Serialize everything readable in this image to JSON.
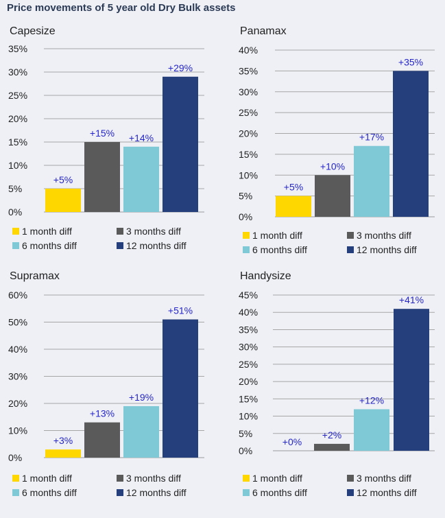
{
  "page_title": "Price movements of 5 year old Dry Bulk assets",
  "chart_data": [
    {
      "type": "bar",
      "title": "Capesize",
      "categories": [
        "1 month diff",
        "3 months diff",
        "6 months diff",
        "12 months diff"
      ],
      "values": [
        5,
        15,
        14,
        29
      ],
      "data_labels": [
        "+5%",
        "+15%",
        "+14%",
        "+29%"
      ],
      "y_ticks": [
        "0%",
        "5%",
        "10%",
        "15%",
        "20%",
        "25%",
        "30%",
        "35%"
      ],
      "ylim": [
        0,
        35
      ],
      "legend": [
        "1 month diff",
        "3 months diff",
        "6 months diff",
        "12 months diff"
      ],
      "legend_position": "bottom",
      "grid": true,
      "colors": [
        "#ffd700",
        "#5a5a5a",
        "#7fc8d6",
        "#253f7d"
      ]
    },
    {
      "type": "bar",
      "title": "Panamax",
      "categories": [
        "1 month diff",
        "3 months diff",
        "6 months diff",
        "12 months diff"
      ],
      "values": [
        5,
        10,
        17,
        35
      ],
      "data_labels": [
        "+5%",
        "+10%",
        "+17%",
        "+35%"
      ],
      "y_ticks": [
        "0%",
        "5%",
        "10%",
        "15%",
        "20%",
        "25%",
        "30%",
        "35%",
        "40%"
      ],
      "ylim": [
        0,
        40
      ],
      "legend": [
        "1 month diff",
        "3 months diff",
        "6 months diff",
        "12 months diff"
      ],
      "legend_position": "bottom",
      "grid": true,
      "colors": [
        "#ffd700",
        "#5a5a5a",
        "#7fc8d6",
        "#253f7d"
      ]
    },
    {
      "type": "bar",
      "title": "Supramax",
      "categories": [
        "1 month diff",
        "3 months diff",
        "6 months diff",
        "12 months diff"
      ],
      "values": [
        3,
        13,
        19,
        51
      ],
      "data_labels": [
        "+3%",
        "+13%",
        "+19%",
        "+51%"
      ],
      "y_ticks": [
        "0%",
        "10%",
        "20%",
        "30%",
        "40%",
        "50%",
        "60%"
      ],
      "ylim": [
        0,
        60
      ],
      "legend": [
        "1 month diff",
        "3 months diff",
        "6 months diff",
        "12 months diff"
      ],
      "legend_position": "bottom",
      "grid": true,
      "colors": [
        "#ffd700",
        "#5a5a5a",
        "#7fc8d6",
        "#253f7d"
      ]
    },
    {
      "type": "bar",
      "title": "Handysize",
      "categories": [
        "1 month diff",
        "3 months diff",
        "6 months diff",
        "12 months diff"
      ],
      "values": [
        0,
        2,
        12,
        41
      ],
      "data_labels": [
        "+0%",
        "+2%",
        "+12%",
        "+41%"
      ],
      "y_ticks": [
        "0%",
        "5%",
        "10%",
        "15%",
        "20%",
        "25%",
        "30%",
        "35%",
        "40%",
        "45%"
      ],
      "ylim": [
        0,
        45
      ],
      "legend": [
        "1 month diff",
        "3 months diff",
        "6 months diff",
        "12 months diff"
      ],
      "legend_position": "bottom",
      "grid": true,
      "colors": [
        "#ffd700",
        "#5a5a5a",
        "#7fc8d6",
        "#253f7d"
      ]
    }
  ]
}
